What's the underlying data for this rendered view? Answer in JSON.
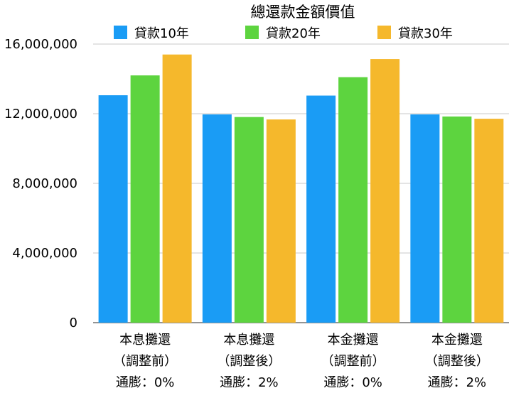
{
  "chart_data": {
    "type": "bar",
    "title": "總還款金額價值",
    "categories": [
      [
        "本息攤還",
        "（調整前）",
        "通膨：0%"
      ],
      [
        "本息攤還",
        "（調整後）",
        "通膨：2%"
      ],
      [
        "本金攤還",
        "（調整前）",
        "通膨：0%"
      ],
      [
        "本金攤還",
        "（調整後）",
        "通膨：2%"
      ]
    ],
    "series": [
      {
        "name": "貸款10年",
        "color": "#1a9cf5",
        "values": [
          13060000,
          11960000,
          13040000,
          11960000
        ]
      },
      {
        "name": "貸款20年",
        "color": "#5dd43f",
        "values": [
          14200000,
          11810000,
          14100000,
          11840000
        ]
      },
      {
        "name": "貸款30年",
        "color": "#f5b82c",
        "values": [
          15400000,
          11670000,
          15140000,
          11710000
        ]
      }
    ],
    "yticks": [
      "0",
      "4,000,000",
      "8,000,000",
      "12,000,000",
      "16,000,000"
    ],
    "ytick_values": [
      0,
      4000000,
      8000000,
      12000000,
      16000000
    ],
    "ylim": [
      0,
      16000000
    ],
    "xlabel": "",
    "ylabel": "",
    "legend_position": "top",
    "grid": true
  }
}
